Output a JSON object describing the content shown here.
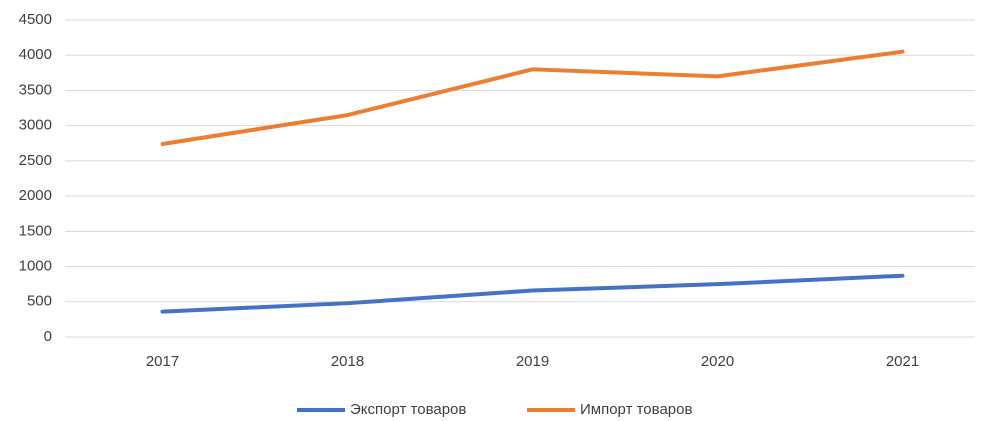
{
  "chart_data": {
    "type": "line",
    "categories": [
      "2017",
      "2018",
      "2019",
      "2020",
      "2021"
    ],
    "series": [
      {
        "name": "Экспорт товаров",
        "color": "#4472c4",
        "values": [
          360,
          480,
          660,
          750,
          870
        ]
      },
      {
        "name": "Импорт товаров",
        "color": "#ed7d31",
        "values": [
          2740,
          3150,
          3800,
          3700,
          4050
        ]
      }
    ],
    "ylim": [
      0,
      4500
    ],
    "yticks": [
      0,
      500,
      1000,
      1500,
      2000,
      2500,
      3000,
      3500,
      4000,
      4500
    ],
    "grid": true,
    "legend": "bottom"
  }
}
